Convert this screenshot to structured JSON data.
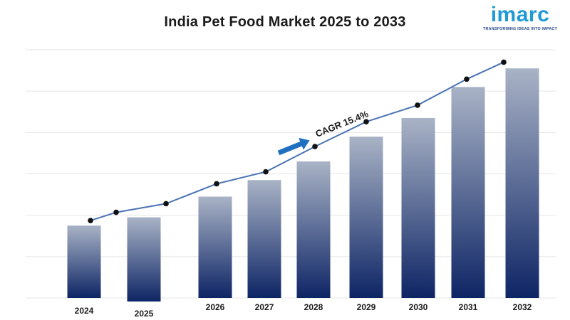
{
  "header": {
    "title": "India Pet Food Market 2025 to 2033"
  },
  "logo": {
    "name": "imarc",
    "tagline": "TRANSFORMING IDEAS INTO IMPACT"
  },
  "colors": {
    "bar_top": "#a9b3c6",
    "bar_bottom": "#0e2565",
    "line": "#4a73b5",
    "marker": "#111111",
    "arrow": "#1f70c1",
    "grid": "#e4e4e4",
    "logo_blue": "#1f9ad6"
  },
  "chart_data": {
    "type": "bar",
    "title": "India Pet Food Market 2025 to 2033",
    "xlabel": "",
    "ylabel": "",
    "categories": [
      "2024",
      "2025",
      "2026",
      "2027",
      "2028",
      "2029",
      "2030",
      "2031",
      "2032"
    ],
    "values": [
      17.5,
      19.5,
      24.5,
      28.5,
      33,
      39,
      43.5,
      51,
      55.5
    ],
    "ylim": [
      0,
      60
    ],
    "grid": true,
    "trend_line": {
      "points": [
        {
          "x": "2024",
          "y": 18.7
        },
        {
          "x": "2025",
          "y": 20.7
        },
        {
          "x": "2025",
          "y": 22.8
        },
        {
          "x": "2026",
          "y": 27.6
        },
        {
          "x": "2027",
          "y": 30.5
        },
        {
          "x": "2028",
          "y": 36.6
        },
        {
          "x": "2029",
          "y": 42.6
        },
        {
          "x": "2030",
          "y": 46.6
        },
        {
          "x": "2031",
          "y": 52.9
        },
        {
          "x": "2032",
          "y": 57.0
        }
      ]
    },
    "annotations": [
      {
        "text": "CAGR 15.4%",
        "shape": "arrow"
      }
    ]
  }
}
